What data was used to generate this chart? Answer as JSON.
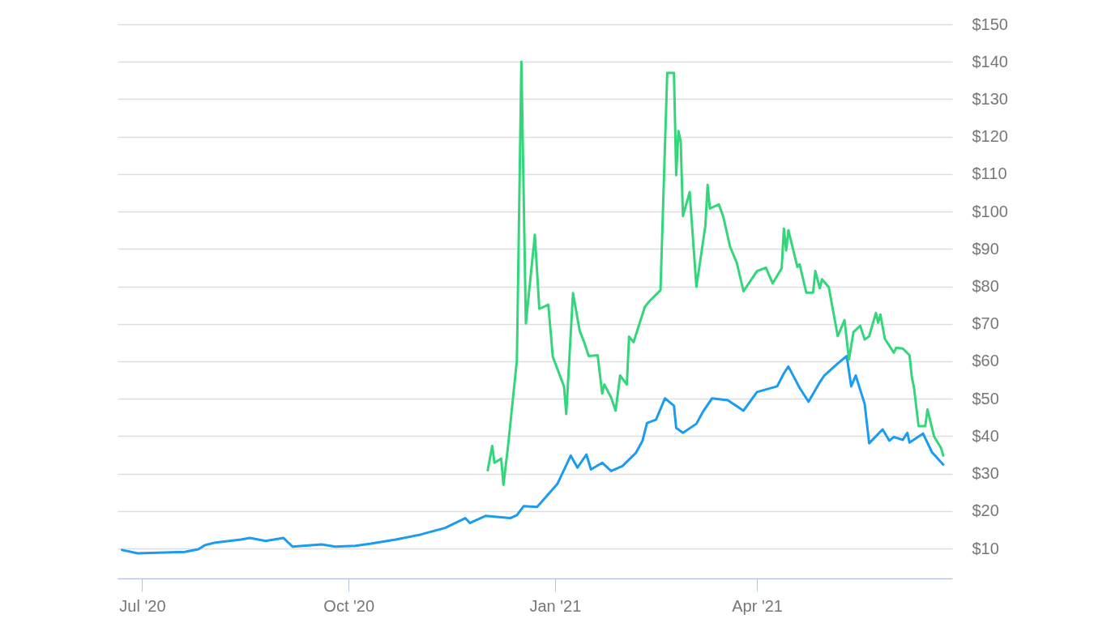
{
  "chart_data": {
    "type": "line",
    "xlim": [
      "2020-06-20",
      "2021-06-27"
    ],
    "xticks": [
      {
        "value": "2020-07-01",
        "label": "Jul '20"
      },
      {
        "value": "2020-10-01",
        "label": "Oct '20"
      },
      {
        "value": "2021-01-01",
        "label": "Jan '21"
      },
      {
        "value": "2021-04-01",
        "label": "Apr '21"
      }
    ],
    "ylim": [
      2,
      150
    ],
    "yticks": [
      {
        "value": 10,
        "label": "$10"
      },
      {
        "value": 20,
        "label": "$20"
      },
      {
        "value": 30,
        "label": "$30"
      },
      {
        "value": 40,
        "label": "$40"
      },
      {
        "value": 50,
        "label": "$50"
      },
      {
        "value": 60,
        "label": "$60"
      },
      {
        "value": 70,
        "label": "$70"
      },
      {
        "value": 80,
        "label": "$80"
      },
      {
        "value": 90,
        "label": "$90"
      },
      {
        "value": 100,
        "label": "$100"
      },
      {
        "value": 110,
        "label": "$110"
      },
      {
        "value": 120,
        "label": "$120"
      },
      {
        "value": 130,
        "label": "$130"
      },
      {
        "value": 140,
        "label": "$140"
      },
      {
        "value": 150,
        "label": "$150"
      }
    ],
    "grid": "y",
    "marker": "none",
    "line_style": "solid",
    "series": [
      {
        "color": "#1a9cf0",
        "x": [
          "2020-06-22",
          "2020-06-29",
          "2020-07-20",
          "2020-07-26",
          "2020-07-29",
          "2020-08-02",
          "2020-08-14",
          "2020-08-18",
          "2020-08-25",
          "2020-09-02",
          "2020-09-06",
          "2020-09-19",
          "2020-09-25",
          "2020-10-04",
          "2020-10-11",
          "2020-10-22",
          "2020-11-02",
          "2020-11-13",
          "2020-11-22",
          "2020-11-24",
          "2020-12-01",
          "2020-12-12",
          "2020-12-15",
          "2020-12-18",
          "2020-12-24",
          "2021-01-02",
          "2021-01-08",
          "2021-01-11",
          "2021-01-15",
          "2021-01-17",
          "2021-01-22",
          "2021-01-26",
          "2021-01-31",
          "2021-02-06",
          "2021-02-09",
          "2021-02-11",
          "2021-02-15",
          "2021-02-19",
          "2021-02-23",
          "2021-02-24",
          "2021-02-27",
          "2021-03-05",
          "2021-03-08",
          "2021-03-12",
          "2021-03-19",
          "2021-03-26",
          "2021-04-01",
          "2021-04-10",
          "2021-04-13",
          "2021-04-15",
          "2021-04-20",
          "2021-04-24",
          "2021-04-29",
          "2021-05-01",
          "2021-05-07",
          "2021-05-11",
          "2021-05-13",
          "2021-05-15",
          "2021-05-19",
          "2021-05-21",
          "2021-05-27",
          "2021-05-30",
          "2021-06-01",
          "2021-06-05",
          "2021-06-07",
          "2021-06-08",
          "2021-06-14",
          "2021-06-18",
          "2021-06-23"
        ],
        "values": [
          9.6,
          8.7,
          9.1,
          9.8,
          10.9,
          11.5,
          12.4,
          12.8,
          12.0,
          12.8,
          10.5,
          11.1,
          10.5,
          10.7,
          11.3,
          12.4,
          13.7,
          15.5,
          18.1,
          16.8,
          18.7,
          18.1,
          18.9,
          21.3,
          21.1,
          27.2,
          34.8,
          31.6,
          35.1,
          31.1,
          32.9,
          30.7,
          32.0,
          35.5,
          38.8,
          43.5,
          44.4,
          50.1,
          48.1,
          42.2,
          40.9,
          43.3,
          46.6,
          50.1,
          49.6,
          46.8,
          51.8,
          53.3,
          56.8,
          58.6,
          52.9,
          49.2,
          54.4,
          56.2,
          59.4,
          61.4,
          53.3,
          56.2,
          48.6,
          38.1,
          41.8,
          38.8,
          39.8,
          39.0,
          40.9,
          38.3,
          40.7,
          35.7,
          32.4
        ]
      },
      {
        "color": "#33d67a",
        "x": [
          "2020-12-02",
          "2020-12-04",
          "2020-12-05",
          "2020-12-08",
          "2020-12-09",
          "2020-12-11",
          "2020-12-15",
          "2020-12-17",
          "2020-12-19",
          "2020-12-23",
          "2020-12-25",
          "2020-12-29",
          "2020-12-31",
          "2021-01-05",
          "2021-01-06",
          "2021-01-09",
          "2021-01-12",
          "2021-01-14",
          "2021-01-16",
          "2021-01-20",
          "2021-01-22",
          "2021-01-23",
          "2021-01-26",
          "2021-01-28",
          "2021-01-30",
          "2021-02-02",
          "2021-02-03",
          "2021-02-05",
          "2021-02-10",
          "2021-02-12",
          "2021-02-17",
          "2021-02-20",
          "2021-02-23",
          "2021-02-24",
          "2021-02-25",
          "2021-02-26",
          "2021-02-27",
          "2021-03-02",
          "2021-03-05",
          "2021-03-09",
          "2021-03-10",
          "2021-03-11",
          "2021-03-15",
          "2021-03-17",
          "2021-03-20",
          "2021-03-23",
          "2021-03-26",
          "2021-04-01",
          "2021-04-05",
          "2021-04-08",
          "2021-04-12",
          "2021-04-13",
          "2021-04-14",
          "2021-04-15",
          "2021-04-19",
          "2021-04-20",
          "2021-04-23",
          "2021-04-26",
          "2021-04-27",
          "2021-04-29",
          "2021-04-30",
          "2021-05-03",
          "2021-05-07",
          "2021-05-10",
          "2021-05-12",
          "2021-05-14",
          "2021-05-17",
          "2021-05-19",
          "2021-05-21",
          "2021-05-24",
          "2021-05-25",
          "2021-05-26",
          "2021-05-28",
          "2021-06-01",
          "2021-06-02",
          "2021-06-05",
          "2021-06-08",
          "2021-06-09",
          "2021-06-10",
          "2021-06-12",
          "2021-06-15",
          "2021-06-16",
          "2021-06-19",
          "2021-06-22",
          "2021-06-23"
        ],
        "values": [
          30.9,
          37.4,
          32.9,
          34.0,
          27.0,
          37.0,
          60.3,
          140.0,
          70.1,
          93.8,
          74.0,
          75.1,
          61.2,
          53.3,
          45.9,
          78.2,
          68.1,
          65.1,
          61.4,
          61.6,
          51.4,
          53.8,
          50.3,
          46.8,
          56.2,
          53.8,
          66.6,
          65.1,
          74.5,
          76.0,
          79.0,
          137.0,
          137.0,
          109.7,
          121.5,
          118.7,
          98.8,
          105.2,
          79.9,
          96.2,
          107.1,
          100.8,
          101.9,
          98.6,
          90.6,
          86.3,
          78.7,
          84.1,
          85.0,
          80.8,
          84.8,
          95.4,
          89.6,
          95.0,
          85.2,
          85.9,
          78.3,
          78.3,
          84.1,
          79.5,
          81.9,
          79.8,
          66.7,
          71.0,
          60.5,
          67.8,
          69.5,
          65.8,
          66.7,
          72.9,
          70.3,
          72.5,
          66.0,
          62.3,
          63.6,
          63.4,
          61.6,
          55.8,
          52.9,
          42.7,
          42.7,
          47.1,
          39.8,
          36.9,
          34.8
        ]
      }
    ]
  }
}
